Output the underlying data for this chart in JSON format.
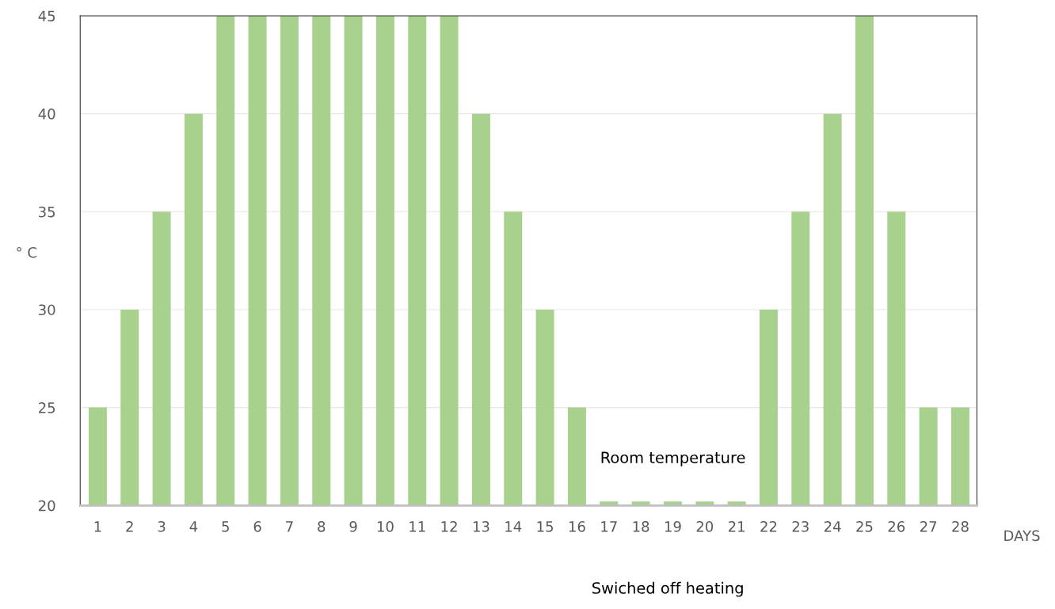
{
  "chart_data": {
    "type": "bar",
    "categories": [
      "1",
      "2",
      "3",
      "4",
      "5",
      "6",
      "7",
      "8",
      "9",
      "10",
      "11",
      "12",
      "13",
      "14",
      "15",
      "16",
      "17",
      "18",
      "19",
      "20",
      "21",
      "22",
      "23",
      "24",
      "25",
      "26",
      "27",
      "28"
    ],
    "values": [
      25,
      30,
      35,
      40,
      45,
      45,
      45,
      45,
      45,
      45,
      45,
      45,
      40,
      35,
      30,
      25,
      20.2,
      20.2,
      20.2,
      20.2,
      20.2,
      30,
      35,
      40,
      45,
      35,
      25,
      25
    ],
    "color": "#a9d18e",
    "xlabel": "DAYS",
    "ylabel": "° C",
    "ylim": [
      20,
      45
    ],
    "yticks": [
      20,
      25,
      30,
      35,
      40,
      45
    ],
    "grid": "y",
    "legend": false,
    "annotations": [
      "Room temperature",
      "Swiched off heating"
    ]
  }
}
